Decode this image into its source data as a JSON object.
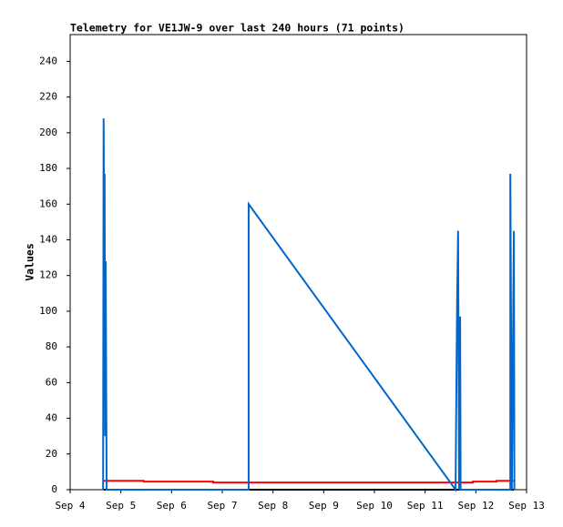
{
  "chart_data": {
    "type": "line",
    "title": "Telemetry for VE1JW-9 over last 240 hours (71 points)",
    "y_label": "Values",
    "xlim": [
      4,
      13
    ],
    "xticks": [
      {
        "value": 4,
        "label": "Sep 4"
      },
      {
        "value": 5,
        "label": "Sep 5"
      },
      {
        "value": 6,
        "label": "Sep 6"
      },
      {
        "value": 7,
        "label": "Sep 7"
      },
      {
        "value": 8,
        "label": "Sep 8"
      },
      {
        "value": 9,
        "label": "Sep 9"
      },
      {
        "value": 10,
        "label": "Sep 10"
      },
      {
        "value": 11,
        "label": "Sep 11"
      },
      {
        "value": 12,
        "label": "Sep 12"
      },
      {
        "value": 13,
        "label": "Sep 13"
      }
    ],
    "ylim": [
      0,
      255
    ],
    "yticks": [
      0,
      20,
      40,
      60,
      80,
      100,
      120,
      140,
      160,
      180,
      200,
      220,
      240
    ],
    "series": [
      {
        "color": "#000000",
        "x": [
          4.66,
          12.75
        ],
        "values": [
          0,
          0
        ]
      },
      {
        "color": "#ff0000",
        "x": [
          4.66,
          5.45,
          5.45,
          6.82,
          6.82,
          11.94,
          11.94,
          12.41,
          12.41,
          12.75
        ],
        "values": [
          5,
          5,
          4.5,
          4.5,
          4,
          4,
          4.5,
          4.5,
          5,
          5
        ]
      },
      {
        "color": "#0066cc",
        "x": [
          4.65,
          4.66,
          4.67,
          4.68,
          4.69,
          4.7,
          4.71,
          4.72,
          7.52,
          7.52,
          11.6,
          11.63,
          11.65,
          11.67,
          11.69,
          11.7,
          12.68,
          12.68,
          12.71,
          12.75,
          12.76
        ],
        "values": [
          0,
          208,
          147,
          177,
          30,
          128,
          65,
          0,
          0,
          160,
          0,
          104,
          145,
          0,
          97,
          0,
          0,
          177,
          0,
          145,
          0
        ]
      }
    ]
  }
}
